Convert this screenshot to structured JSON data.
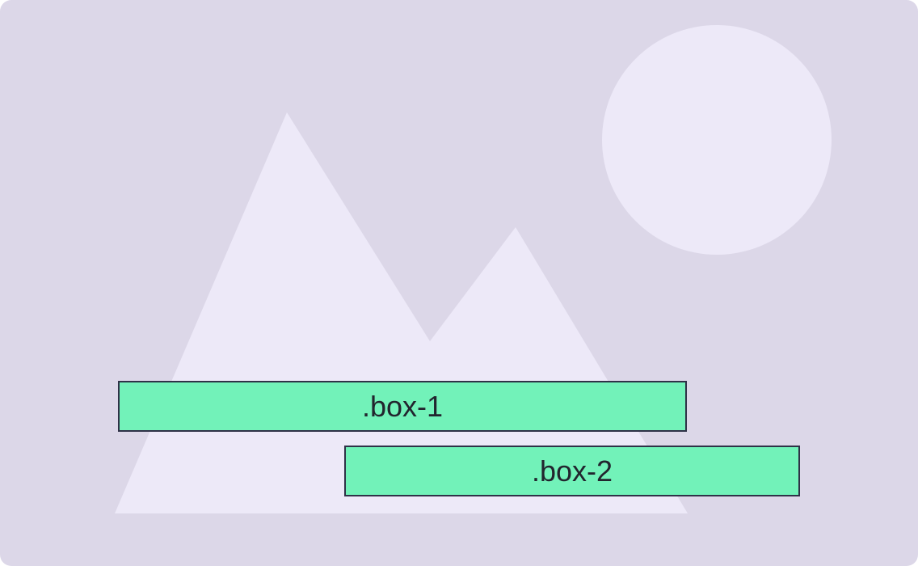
{
  "colors": {
    "background": "#dcd7e8",
    "shape_fill": "#ede9f8",
    "box_fill": "#72f2b9",
    "box_border": "#2f3147",
    "box_text": "#22252e"
  },
  "placeholder_image": {
    "icon": "image-placeholder-icon"
  },
  "boxes": [
    {
      "label": ".box-1"
    },
    {
      "label": ".box-2"
    }
  ]
}
